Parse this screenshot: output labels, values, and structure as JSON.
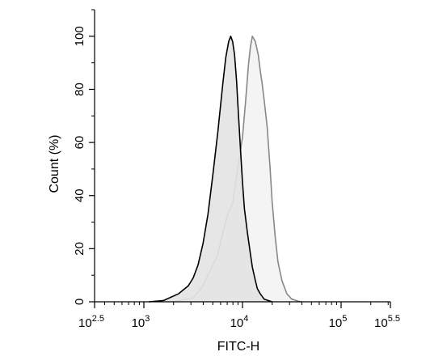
{
  "chart_data": {
    "type": "area",
    "title": "",
    "xlabel": "FITC-H",
    "ylabel": "Count  (%)",
    "x_scale": "log10",
    "xlim_exponents": [
      2.5,
      5.5
    ],
    "ylim": [
      0,
      110
    ],
    "x_ticks": [
      {
        "base": "10",
        "exp": "2.5",
        "value": 2.5
      },
      {
        "base": "10",
        "exp": "3",
        "value": 3
      },
      {
        "base": "10",
        "exp": "4",
        "value": 4
      },
      {
        "base": "10",
        "exp": "5",
        "value": 5
      },
      {
        "base": "10",
        "exp": "5.5",
        "value": 5.5
      }
    ],
    "y_ticks": [
      "0",
      "20",
      "40",
      "60",
      "80",
      "100"
    ],
    "grid": false,
    "legend": "none",
    "series": [
      {
        "color": "#000000",
        "fill": "#e3e3e3",
        "log_x": [
          3.05,
          3.2,
          3.35,
          3.45,
          3.5,
          3.55,
          3.6,
          3.65,
          3.7,
          3.75,
          3.8,
          3.83,
          3.86,
          3.88,
          3.9,
          3.92,
          3.94,
          3.96,
          3.98,
          4.0,
          4.02,
          4.05,
          4.08,
          4.1,
          4.13,
          4.15,
          4.18,
          4.22,
          4.26,
          4.3
        ],
        "y": [
          0,
          0.5,
          3,
          6,
          9,
          14,
          22,
          33,
          48,
          64,
          82,
          92,
          98,
          100,
          98,
          93,
          83,
          70,
          57,
          45,
          35,
          26,
          18,
          13,
          8,
          5,
          3,
          1,
          0.5,
          0
        ]
      },
      {
        "color": "#888888",
        "fill": "#f3f3f3",
        "log_x": [
          3.3,
          3.5,
          3.6,
          3.7,
          3.75,
          3.8,
          3.85,
          3.9,
          3.95,
          4.0,
          4.03,
          4.06,
          4.08,
          4.1,
          4.13,
          4.16,
          4.18,
          4.2,
          4.22,
          4.25,
          4.28,
          4.3,
          4.33,
          4.36,
          4.4,
          4.45,
          4.5,
          4.56,
          4.6
        ],
        "y": [
          0,
          1.5,
          6,
          14,
          18,
          26,
          33,
          37,
          50,
          62,
          75,
          89,
          96,
          100,
          98,
          93,
          87,
          82,
          76,
          66,
          50,
          38,
          25,
          15,
          8,
          3,
          1,
          0.3,
          0
        ]
      }
    ]
  }
}
